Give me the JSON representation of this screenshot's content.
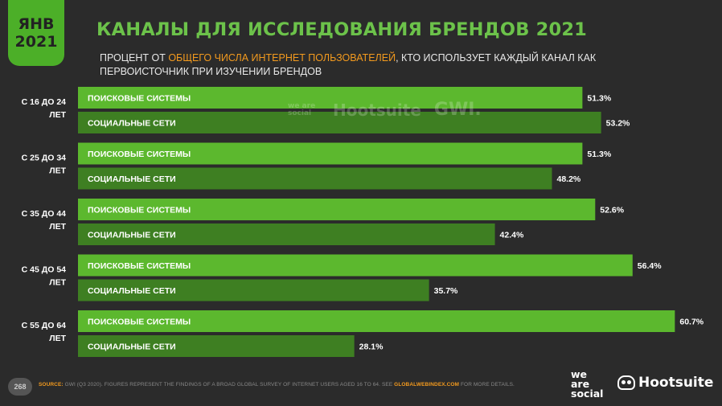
{
  "header": {
    "month": "ЯНВ",
    "year": "2021",
    "title": "КАНАЛЫ ДЛЯ ИССЛЕДОВАНИЯ БРЕНДОВ 2021",
    "subtitle_pre": "ПРОЦЕНТ ОТ ",
    "subtitle_highlight": "ОБЩЕГО ЧИСЛА ИНТЕРНЕТ ПОЛЬЗОВАТЕЛЕЙ",
    "subtitle_post": ", КТО ИСПОЛЬЗУЕТ КАЖДЫЙ КАНАЛ КАК ПЕРВОИСТОЧНИК ПРИ ИЗУЧЕНИИ БРЕНДОВ"
  },
  "watermark": {
    "was": "we are social",
    "hootsuite": "Hootsuite",
    "gwi": "GWI."
  },
  "colors": {
    "background": "#2b2b2b",
    "search_bar": "#5cb82e",
    "social_bar": "#3e7f22",
    "accent": "#6cc24a",
    "highlight": "#f39a1e"
  },
  "chart_data": {
    "type": "bar",
    "orientation": "horizontal",
    "categories": [
      "С 16 ДО 24 ЛЕТ",
      "С 25 ДО 34 ЛЕТ",
      "С 35 ДО 44 ЛЕТ",
      "С 45 ДО 54 ЛЕТ",
      "С 55 ДО 64 ЛЕТ"
    ],
    "series": [
      {
        "name": "ПОИСКОВЫЕ СИСТЕМЫ",
        "values": [
          51.3,
          51.3,
          52.6,
          56.4,
          60.7
        ],
        "labels": [
          "51.3%",
          "51.3%",
          "52.6%",
          "56.4%",
          "60.7%"
        ]
      },
      {
        "name": "СОЦИАЛЬНЫЕ СЕТИ",
        "values": [
          53.2,
          48.2,
          42.4,
          35.7,
          28.1
        ],
        "labels": [
          "53.2%",
          "48.2%",
          "42.4%",
          "35.7%",
          "28.1%"
        ]
      }
    ],
    "xlim": [
      0,
      100
    ]
  },
  "footer": {
    "page": "268",
    "source_label": "SOURCE:",
    "source_text": " GWI (Q3 2020). FIGURES REPRESENT THE FINDINGS OF A BROAD GLOBAL SURVEY OF INTERNET USERS AGED 16 TO 64. SEE ",
    "source_link": "GLOBALWEBINDEX.COM",
    "source_tail": " FOR MORE DETAILS.",
    "logo_was_1": "we",
    "logo_was_2": "are",
    "logo_was_3": "social",
    "logo_hootsuite": "Hootsuite"
  }
}
